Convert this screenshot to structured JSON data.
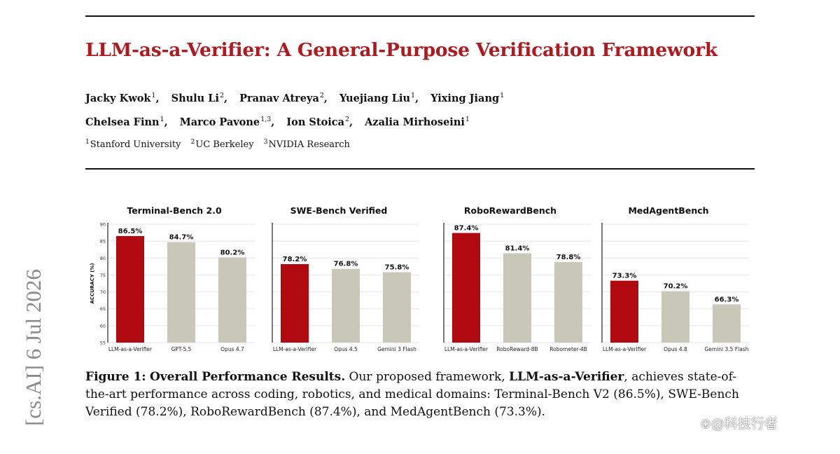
{
  "paper": {
    "title": "LLM-as-a-Verifier: A General-Purpose Verification Framework",
    "authors_line1": [
      {
        "name": "Jacky Kwok",
        "aff": "1"
      },
      {
        "name": "Shulu Li",
        "aff": "2"
      },
      {
        "name": "Pranav Atreya",
        "aff": "2"
      },
      {
        "name": "Yuejiang Liu",
        "aff": "1"
      },
      {
        "name": "Yixing Jiang",
        "aff": "1"
      }
    ],
    "authors_line2": [
      {
        "name": "Chelsea Finn",
        "aff": "1"
      },
      {
        "name": "Marco Pavone",
        "aff": "1,3"
      },
      {
        "name": "Ion Stoica",
        "aff": "2"
      },
      {
        "name": "Azalia Mirhoseini",
        "aff": "1"
      }
    ],
    "affiliations": [
      {
        "num": "1",
        "name": "Stanford University"
      },
      {
        "num": "2",
        "name": "UC Berkeley"
      },
      {
        "num": "3",
        "name": "NVIDIA Research"
      }
    ],
    "arxiv_stamp": "[cs.AI]  6 Jul 2026"
  },
  "figure": {
    "caption_label": "Figure 1:",
    "caption_bold": "Overall Performance Results.",
    "caption_text1": " Our proposed framework, ",
    "caption_bold2": "LLM-as-a-Verifier",
    "caption_text2": ", achieves state-of-the-art performance across coding, robotics, and medical domains: Terminal-Bench V2 (86.5%), SWE-Bench Verified (78.2%), RoboRewardBench (87.4%), and MedAgentBench (73.3%).",
    "y_axis_label": "ACCURACY (%)",
    "y_ticks": [
      55,
      60,
      65,
      70,
      75,
      80,
      85,
      90
    ]
  },
  "chart_data": [
    {
      "type": "bar",
      "title": "Terminal-Bench 2.0",
      "ylabel": "ACCURACY (%)",
      "ylim": [
        55,
        90
      ],
      "categories": [
        "LLM-as-a-Verifier",
        "GPT-5.5",
        "Opus 4.7"
      ],
      "values": [
        86.5,
        84.7,
        80.2
      ],
      "labels": [
        "86.5%",
        "84.7%",
        "80.2%"
      ]
    },
    {
      "type": "bar",
      "title": "SWE-Bench Verified",
      "ylim": [
        55,
        90
      ],
      "categories": [
        "LLM-as-a-Verifier",
        "Opus 4.5",
        "Gemini 3 Flash"
      ],
      "values": [
        78.2,
        76.8,
        75.8
      ],
      "labels": [
        "78.2%",
        "76.8%",
        "75.8%"
      ]
    },
    {
      "type": "bar",
      "title": "RoboRewardBench",
      "ylim": [
        55,
        90
      ],
      "categories": [
        "LLM-as-a-Verifier",
        "RoboReward-8B",
        "Robometer-4B"
      ],
      "values": [
        87.4,
        81.4,
        78.8
      ],
      "labels": [
        "87.4%",
        "81.4%",
        "78.8%"
      ]
    },
    {
      "type": "bar",
      "title": "MedAgentBench",
      "ylim": [
        55,
        90
      ],
      "categories": [
        "LLM-as-a-Verifier",
        "Opus 4.8",
        "Gemini 3.5 Flash"
      ],
      "values": [
        73.3,
        70.2,
        66.3
      ],
      "labels": [
        "73.3%",
        "70.2%",
        "66.3%"
      ]
    }
  ],
  "colors": {
    "highlight": "#b0090f",
    "baseline": "#c8c8b8",
    "title_red": "#b0191e"
  },
  "watermark": "⊕@科技行者"
}
